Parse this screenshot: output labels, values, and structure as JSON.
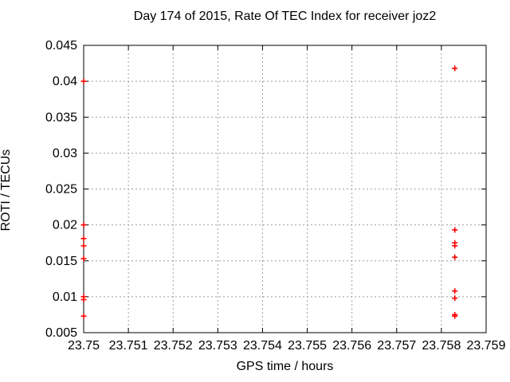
{
  "colors": {
    "background": "#ffffff",
    "axis": "#000000",
    "grid": "#9e9e9e",
    "marker": "#ff0000"
  },
  "chart_data": {
    "type": "scatter",
    "title": "Day 174 of 2015, Rate Of TEC Index for receiver joz2",
    "xlabel": "GPS time / hours",
    "ylabel": "ROTI / TECUs",
    "xlim": [
      23.75,
      23.759
    ],
    "ylim": [
      0.005,
      0.045
    ],
    "x_ticks": [
      23.75,
      23.751,
      23.752,
      23.753,
      23.754,
      23.755,
      23.756,
      23.757,
      23.758,
      23.759
    ],
    "x_tick_labels": [
      "23.75",
      "23.751",
      "23.752",
      "23.753",
      "23.754",
      "23.755",
      "23.756",
      "23.757",
      "23.758",
      "23.759"
    ],
    "y_ticks": [
      0.005,
      0.01,
      0.015,
      0.02,
      0.025,
      0.03,
      0.035,
      0.04,
      0.045
    ],
    "y_tick_labels": [
      "0.005",
      "0.01",
      "0.015",
      "0.02",
      "0.025",
      "0.03",
      "0.035",
      "0.04",
      "0.045"
    ],
    "grid": true,
    "legend": "none",
    "marker": "plus",
    "series": [
      {
        "name": "ROTI",
        "points": [
          [
            23.75,
            0.04
          ],
          [
            23.75,
            0.02
          ],
          [
            23.75,
            0.0181
          ],
          [
            23.75,
            0.0171
          ],
          [
            23.75,
            0.0153
          ],
          [
            23.75,
            0.01
          ],
          [
            23.75,
            0.0096
          ],
          [
            23.75,
            0.0073
          ],
          [
            23.7583,
            0.0418
          ],
          [
            23.7583,
            0.0193
          ],
          [
            23.7583,
            0.0175
          ],
          [
            23.7583,
            0.0171
          ],
          [
            23.7583,
            0.0155
          ],
          [
            23.7583,
            0.0108
          ],
          [
            23.7583,
            0.0098
          ],
          [
            23.7583,
            0.0075
          ],
          [
            23.7583,
            0.0073
          ]
        ]
      }
    ]
  }
}
